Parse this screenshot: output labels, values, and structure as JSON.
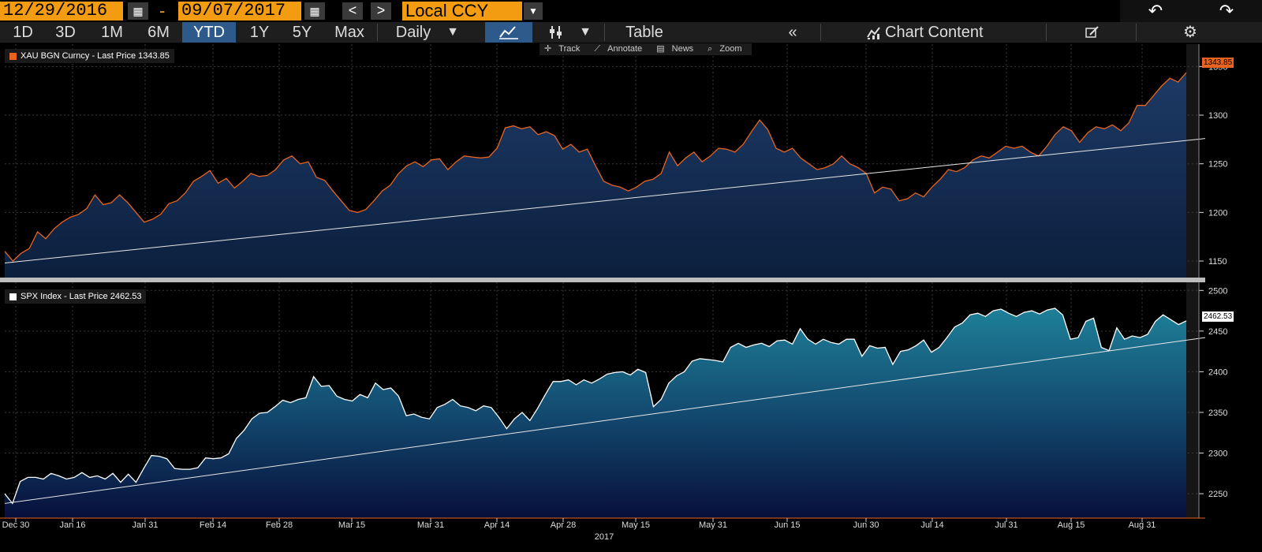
{
  "topbar": {
    "start_date": "12/29/2016",
    "separator": "-",
    "end_date": "09/07/2017",
    "prev_label": "<",
    "next_label": ">",
    "currency": "Local CCY",
    "calendar_icon": "calendar-icon",
    "undo_icon": "undo-icon",
    "redo_icon": "redo-icon"
  },
  "toolbar": {
    "ranges": [
      "1D",
      "3D",
      "1M",
      "6M",
      "YTD",
      "1Y",
      "5Y",
      "Max"
    ],
    "active_range": "YTD",
    "frequency": "Daily",
    "table_label": "Table",
    "collapse_label": "«",
    "chart_content_label": "Chart Content",
    "line_chart_icon": "line-chart-icon",
    "bar_icon": "candlestick-icon",
    "edit_icon": "edit-icon",
    "settings_icon": "gear-icon"
  },
  "tools": {
    "track": "Track",
    "annotate": "Annotate",
    "news": "News",
    "zoom": "Zoom"
  },
  "chart_data": [
    {
      "type": "area",
      "legend": "XAU BGN Curncy - Last Price 1343.85",
      "last_value_tag": "1343.85",
      "color_line": "#e8641e",
      "color_fill": "#14305a",
      "yticks": [
        1150,
        1200,
        1250,
        1300,
        1350
      ],
      "ytick_labels": [
        "1150",
        "1200",
        "1250",
        "1300",
        "1350"
      ],
      "ylim": [
        1133,
        1373
      ],
      "trendline": [
        1148,
        1276
      ],
      "values": [
        1160,
        1150,
        1158,
        1163,
        1180,
        1173,
        1183,
        1190,
        1195,
        1198,
        1204,
        1218,
        1208,
        1210,
        1218,
        1210,
        1200,
        1190,
        1193,
        1198,
        1209,
        1212,
        1220,
        1232,
        1237,
        1243,
        1230,
        1235,
        1225,
        1232,
        1240,
        1237,
        1238,
        1244,
        1254,
        1258,
        1250,
        1252,
        1236,
        1233,
        1222,
        1212,
        1202,
        1200,
        1203,
        1212,
        1222,
        1228,
        1240,
        1248,
        1252,
        1247,
        1254,
        1255,
        1244,
        1252,
        1258,
        1257,
        1256,
        1257,
        1266,
        1287,
        1289,
        1286,
        1288,
        1280,
        1283,
        1279,
        1265,
        1270,
        1262,
        1265,
        1248,
        1232,
        1228,
        1226,
        1222,
        1226,
        1232,
        1234,
        1240,
        1262,
        1248,
        1256,
        1262,
        1252,
        1258,
        1266,
        1265,
        1262,
        1270,
        1283,
        1295,
        1285,
        1266,
        1262,
        1266,
        1256,
        1250,
        1244,
        1246,
        1250,
        1258,
        1250,
        1246,
        1240,
        1220,
        1226,
        1224,
        1212,
        1214,
        1220,
        1216,
        1226,
        1234,
        1244,
        1242,
        1246,
        1254,
        1258,
        1256,
        1262,
        1268,
        1266,
        1268,
        1262,
        1258,
        1268,
        1280,
        1288,
        1284,
        1272,
        1282,
        1288,
        1286,
        1290,
        1284,
        1292,
        1310,
        1310,
        1320,
        1330,
        1338,
        1334,
        1343.85
      ]
    },
    {
      "type": "area",
      "legend": "SPX Index - Last Price 2462.53",
      "last_value_tag": "2462.53",
      "color_line": "#ffffff",
      "color_fill": "#1a6a82",
      "yticks": [
        2250,
        2300,
        2350,
        2400,
        2450,
        2500
      ],
      "ytick_labels": [
        "2250",
        "2300",
        "2350",
        "2400",
        "2450",
        "2500"
      ],
      "ylim": [
        2220,
        2510
      ],
      "trendline": [
        2238,
        2442
      ],
      "values": [
        2250,
        2238,
        2265,
        2270,
        2270,
        2268,
        2275,
        2272,
        2268,
        2270,
        2276,
        2270,
        2272,
        2268,
        2275,
        2264,
        2274,
        2264,
        2281,
        2297,
        2296,
        2293,
        2281,
        2280,
        2280,
        2282,
        2294,
        2293,
        2294,
        2299,
        2318,
        2328,
        2342,
        2349,
        2350,
        2357,
        2365,
        2362,
        2366,
        2368,
        2394,
        2382,
        2383,
        2370,
        2366,
        2364,
        2372,
        2368,
        2386,
        2378,
        2380,
        2370,
        2346,
        2348,
        2344,
        2342,
        2356,
        2360,
        2366,
        2358,
        2356,
        2352,
        2358,
        2356,
        2344,
        2330,
        2342,
        2350,
        2340,
        2355,
        2372,
        2388,
        2388,
        2390,
        2384,
        2390,
        2386,
        2391,
        2397,
        2399,
        2400,
        2396,
        2403,
        2399,
        2357,
        2366,
        2386,
        2395,
        2400,
        2413,
        2416,
        2415,
        2414,
        2412,
        2430,
        2435,
        2430,
        2433,
        2435,
        2431,
        2438,
        2439,
        2434,
        2453,
        2440,
        2434,
        2440,
        2436,
        2434,
        2440,
        2440,
        2419,
        2432,
        2429,
        2430,
        2409,
        2425,
        2427,
        2432,
        2439,
        2424,
        2430,
        2442,
        2455,
        2460,
        2470,
        2472,
        2468,
        2475,
        2477,
        2472,
        2468,
        2473,
        2475,
        2471,
        2476,
        2478,
        2470,
        2440,
        2442,
        2462,
        2466,
        2430,
        2426,
        2454,
        2440,
        2444,
        2442,
        2446,
        2462,
        2470,
        2464,
        2458,
        2462.53
      ]
    }
  ],
  "x_axis": {
    "tick_labels": [
      "Dec 30",
      "Jan 16",
      "Jan 31",
      "Feb 14",
      "Feb 28",
      "Mar 15",
      "Mar 31",
      "Apr 14",
      "Apr 28",
      "May 15",
      "May 31",
      "Jun 15",
      "Jun 30",
      "Jul 14",
      "Jul 31",
      "Aug 15",
      "Aug 31"
    ],
    "year_label": "2017"
  }
}
